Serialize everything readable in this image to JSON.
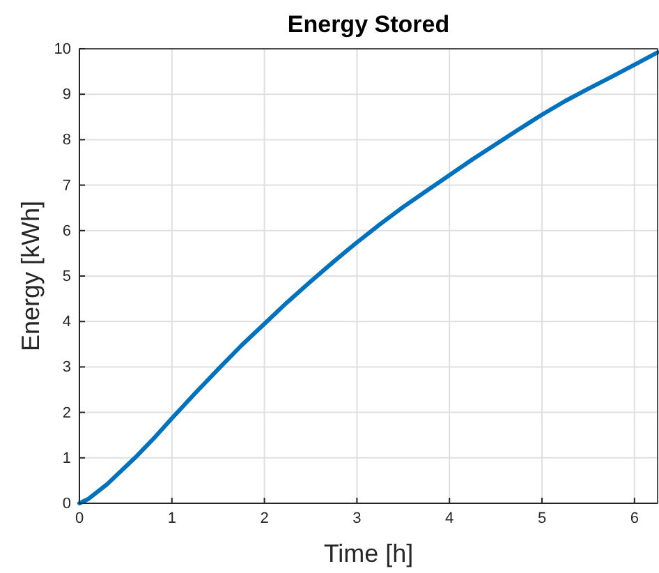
{
  "chart_data": {
    "type": "line",
    "title": "Energy Stored",
    "xlabel": "Time [h]",
    "ylabel": "Energy [kWh]",
    "x": [
      0,
      0.1,
      0.3,
      0.6,
      0.8,
      1,
      1.25,
      1.5,
      1.75,
      2,
      2.25,
      2.5,
      2.75,
      3,
      3.25,
      3.5,
      3.75,
      4,
      4.25,
      4.5,
      4.75,
      5,
      5.25,
      5.5,
      5.75,
      6,
      6.25
    ],
    "series": [
      {
        "color": "#0072bd",
        "values": [
          0,
          0.1,
          0.42,
          1,
          1.42,
          1.87,
          2.42,
          2.95,
          3.47,
          3.95,
          4.43,
          4.88,
          5.32,
          5.74,
          6.14,
          6.52,
          6.87,
          7.22,
          7.57,
          7.9,
          8.23,
          8.55,
          8.85,
          9.12,
          9.38,
          9.65,
          9.92
        ]
      }
    ],
    "xlim": [
      0,
      6.25
    ],
    "xticks": [
      0,
      1,
      2,
      3,
      4,
      5,
      6
    ],
    "ylim": [
      0,
      10
    ],
    "yticks": [
      0,
      1,
      2,
      3,
      4,
      5,
      6,
      7,
      8,
      9,
      10
    ],
    "grid": true,
    "marker": "none",
    "line_style": "solid"
  }
}
